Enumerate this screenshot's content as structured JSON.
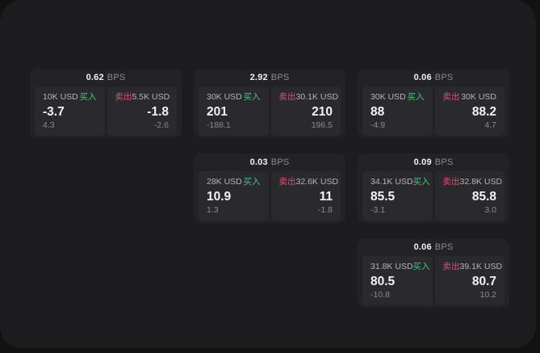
{
  "labels": {
    "bps_unit": "BPS",
    "buy": "买入",
    "sell": "卖出"
  },
  "colors": {
    "backdrop": "#121213",
    "window_bg": "#1d1d1f",
    "card_bg": "#232327",
    "tile_bg": "#2a2a2e",
    "buy_green": "#45c878",
    "sell_red": "#d9506c",
    "value_white": "#f3f3f4",
    "label_gray": "#b4b4b8",
    "sub_gray": "#8a8a8e"
  },
  "cards": [
    {
      "col": 1,
      "row": 1,
      "bps": "0.62",
      "buy": {
        "amount": "10K USD",
        "value": "-3.7",
        "sub": "4.3"
      },
      "sell": {
        "amount": "5.5K USD",
        "value": "-1.8",
        "sub": "-2.6"
      }
    },
    {
      "col": 2,
      "row": 1,
      "bps": "2.92",
      "buy": {
        "amount": "30K USD",
        "value": "201",
        "sub": "-188.1"
      },
      "sell": {
        "amount": "30.1K USD",
        "value": "210",
        "sub": "196.5"
      }
    },
    {
      "col": 3,
      "row": 1,
      "bps": "0.06",
      "buy": {
        "amount": "30K USD",
        "value": "88",
        "sub": "-4.9"
      },
      "sell": {
        "amount": "30K USD",
        "value": "88.2",
        "sub": "4.7"
      }
    },
    {
      "col": 2,
      "row": 2,
      "bps": "0.03",
      "buy": {
        "amount": "28K USD",
        "value": "10.9",
        "sub": "1.3"
      },
      "sell": {
        "amount": "32.6K USD",
        "value": "11",
        "sub": "-1.8"
      }
    },
    {
      "col": 3,
      "row": 2,
      "bps": "0.09",
      "buy": {
        "amount": "34.1K USD",
        "value": "85.5",
        "sub": "-3.1"
      },
      "sell": {
        "amount": "32.8K USD",
        "value": "85.8",
        "sub": "3.0"
      }
    },
    {
      "col": 3,
      "row": 3,
      "bps": "0.06",
      "buy": {
        "amount": "31.8K USD",
        "value": "80.5",
        "sub": "-10.8"
      },
      "sell": {
        "amount": "39.1K USD",
        "value": "80.7",
        "sub": "10.2"
      }
    }
  ]
}
